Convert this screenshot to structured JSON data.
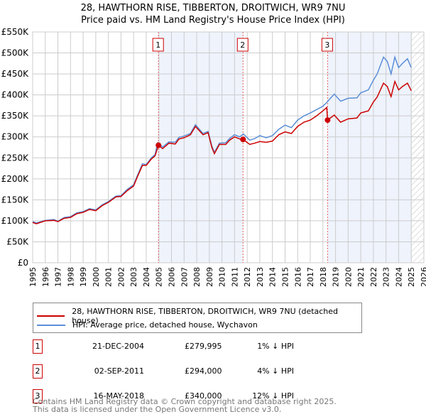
{
  "chart_data": {
    "type": "line",
    "title": "28, HAWTHORN RISE, TIBBERTON, DROITWICH, WR9 7NU",
    "subtitle": "Price paid vs. HM Land Registry's House Price Index (HPI)",
    "xlim": [
      1995,
      2026
    ],
    "ylim": [
      0,
      550000
    ],
    "x_ticks": [
      "1995",
      "1996",
      "1997",
      "1998",
      "1999",
      "2000",
      "2001",
      "2002",
      "2003",
      "2004",
      "2005",
      "2006",
      "2007",
      "2008",
      "2009",
      "2010",
      "2011",
      "2012",
      "2013",
      "2014",
      "2015",
      "2016",
      "2017",
      "2018",
      "2019",
      "2020",
      "2021",
      "2022",
      "2023",
      "2024",
      "2025",
      "2026"
    ],
    "y_ticks": [
      {
        "v": 0,
        "l": "£0"
      },
      {
        "v": 50000,
        "l": "£50K"
      },
      {
        "v": 100000,
        "l": "£100K"
      },
      {
        "v": 150000,
        "l": "£150K"
      },
      {
        "v": 200000,
        "l": "£200K"
      },
      {
        "v": 250000,
        "l": "£250K"
      },
      {
        "v": 300000,
        "l": "£300K"
      },
      {
        "v": 350000,
        "l": "£350K"
      },
      {
        "v": 400000,
        "l": "£400K"
      },
      {
        "v": 450000,
        "l": "£450K"
      },
      {
        "v": 500000,
        "l": "£500K"
      },
      {
        "v": 550000,
        "l": "£550K"
      }
    ],
    "grid": true,
    "series": [
      {
        "name": "28, HAWTHORN RISE, TIBBERTON, DROITWICH, WR9 7NU (detached house)",
        "color": "#cc0000",
        "points": [
          [
            1995,
            96000
          ],
          [
            1995.3,
            93000
          ],
          [
            1996,
            100000
          ],
          [
            1996.7,
            101000
          ],
          [
            1997,
            98000
          ],
          [
            1997.5,
            106000
          ],
          [
            1998,
            108000
          ],
          [
            1998.5,
            117000
          ],
          [
            1999,
            120000
          ],
          [
            1999.5,
            127000
          ],
          [
            2000,
            124000
          ],
          [
            2000.5,
            136000
          ],
          [
            2001,
            144000
          ],
          [
            2001.6,
            157000
          ],
          [
            2002,
            158000
          ],
          [
            2002.5,
            172000
          ],
          [
            2003,
            183000
          ],
          [
            2003.3,
            205000
          ],
          [
            2003.7,
            232000
          ],
          [
            2004,
            232000
          ],
          [
            2004.4,
            247000
          ],
          [
            2004.7,
            255000
          ],
          [
            2004.97,
            279995
          ],
          [
            2005.3,
            272000
          ],
          [
            2005.8,
            285000
          ],
          [
            2006.3,
            283000
          ],
          [
            2006.6,
            295000
          ],
          [
            2007,
            298000
          ],
          [
            2007.5,
            305000
          ],
          [
            2007.9,
            325000
          ],
          [
            2008.5,
            305000
          ],
          [
            2008.9,
            310000
          ],
          [
            2009.2,
            275000
          ],
          [
            2009.4,
            260000
          ],
          [
            2009.8,
            282000
          ],
          [
            2010.3,
            282000
          ],
          [
            2010.6,
            292000
          ],
          [
            2011,
            300000
          ],
          [
            2011.4,
            295000
          ],
          [
            2011.67,
            294000
          ],
          [
            2012.2,
            282000
          ],
          [
            2012.6,
            285000
          ],
          [
            2013,
            289000
          ],
          [
            2013.5,
            287000
          ],
          [
            2014,
            290000
          ],
          [
            2014.5,
            305000
          ],
          [
            2015,
            312000
          ],
          [
            2015.5,
            308000
          ],
          [
            2016,
            325000
          ],
          [
            2016.5,
            335000
          ],
          [
            2017,
            340000
          ],
          [
            2017.5,
            350000
          ],
          [
            2018,
            362000
          ],
          [
            2018.3,
            370000
          ],
          [
            2018.37,
            340000
          ],
          [
            2018.9,
            352000
          ],
          [
            2019.4,
            335000
          ],
          [
            2020,
            343000
          ],
          [
            2020.7,
            345000
          ],
          [
            2021,
            357000
          ],
          [
            2021.6,
            362000
          ],
          [
            2022,
            383000
          ],
          [
            2022.3,
            395000
          ],
          [
            2022.8,
            428000
          ],
          [
            2023.1,
            420000
          ],
          [
            2023.4,
            396000
          ],
          [
            2023.7,
            432000
          ],
          [
            2024,
            412000
          ],
          [
            2024.3,
            420000
          ],
          [
            2024.7,
            428000
          ],
          [
            2025,
            410000
          ]
        ]
      },
      {
        "name": "HPI: Average price, detached house, Wychavon",
        "color": "#5b8fd6",
        "points": [
          [
            1995,
            98000
          ],
          [
            1995.3,
            95000
          ],
          [
            1996,
            101000
          ],
          [
            1996.7,
            103000
          ],
          [
            1997,
            99000
          ],
          [
            1997.5,
            108000
          ],
          [
            1998,
            110000
          ],
          [
            1998.5,
            119000
          ],
          [
            1999,
            122000
          ],
          [
            1999.5,
            129000
          ],
          [
            2000,
            126000
          ],
          [
            2000.5,
            138000
          ],
          [
            2001,
            146000
          ],
          [
            2001.6,
            159000
          ],
          [
            2002,
            160000
          ],
          [
            2002.5,
            175000
          ],
          [
            2003,
            186000
          ],
          [
            2003.3,
            208000
          ],
          [
            2003.7,
            236000
          ],
          [
            2004,
            234000
          ],
          [
            2004.4,
            250000
          ],
          [
            2004.7,
            258000
          ],
          [
            2004.9,
            286000
          ],
          [
            2005.3,
            276000
          ],
          [
            2005.8,
            288000
          ],
          [
            2006.3,
            287000
          ],
          [
            2006.6,
            299000
          ],
          [
            2007,
            302000
          ],
          [
            2007.5,
            308000
          ],
          [
            2007.9,
            329000
          ],
          [
            2008.5,
            308000
          ],
          [
            2008.9,
            313000
          ],
          [
            2009.2,
            278000
          ],
          [
            2009.4,
            263000
          ],
          [
            2009.8,
            285000
          ],
          [
            2010.3,
            286000
          ],
          [
            2010.6,
            296000
          ],
          [
            2011,
            305000
          ],
          [
            2011.4,
            300000
          ],
          [
            2011.7,
            307000
          ],
          [
            2012.2,
            292000
          ],
          [
            2012.6,
            296000
          ],
          [
            2013,
            303000
          ],
          [
            2013.5,
            298000
          ],
          [
            2014,
            303000
          ],
          [
            2014.5,
            318000
          ],
          [
            2015,
            328000
          ],
          [
            2015.5,
            322000
          ],
          [
            2016,
            340000
          ],
          [
            2016.5,
            350000
          ],
          [
            2017,
            357000
          ],
          [
            2017.5,
            365000
          ],
          [
            2018,
            373000
          ],
          [
            2018.3,
            382000
          ],
          [
            2018.9,
            402000
          ],
          [
            2019.4,
            385000
          ],
          [
            2020,
            392000
          ],
          [
            2020.7,
            393000
          ],
          [
            2021,
            405000
          ],
          [
            2021.6,
            412000
          ],
          [
            2022,
            435000
          ],
          [
            2022.3,
            450000
          ],
          [
            2022.8,
            490000
          ],
          [
            2023.1,
            480000
          ],
          [
            2023.4,
            450000
          ],
          [
            2023.7,
            490000
          ],
          [
            2024,
            465000
          ],
          [
            2024.3,
            475000
          ],
          [
            2024.7,
            486000
          ],
          [
            2025,
            465000
          ]
        ]
      }
    ],
    "sales": [
      {
        "n": "1",
        "x": 2004.97,
        "y": 279995
      },
      {
        "n": "2",
        "x": 2011.67,
        "y": 294000
      },
      {
        "n": "3",
        "x": 2018.37,
        "y": 340000
      }
    ],
    "shaded": [
      [
        2004.97,
        2011.67
      ],
      [
        2018.37,
        2025.05
      ]
    ],
    "hatch_from": 2025.05
  },
  "legend": {
    "red": "28, HAWTHORN RISE, TIBBERTON, DROITWICH, WR9 7NU (detached house)",
    "blue": "HPI: Average price, detached house, Wychavon"
  },
  "sales_table": [
    {
      "n": "1",
      "date": "21-DEC-2004",
      "price": "£279,995",
      "hpi": "1% ↓ HPI"
    },
    {
      "n": "2",
      "date": "02-SEP-2011",
      "price": "£294,000",
      "hpi": "4% ↓ HPI"
    },
    {
      "n": "3",
      "date": "16-MAY-2018",
      "price": "£340,000",
      "hpi": "12% ↓ HPI"
    }
  ],
  "footer": {
    "line1": "Contains HM Land Registry data © Crown copyright and database right 2025.",
    "line2": "This data is licensed under the Open Government Licence v3.0."
  }
}
